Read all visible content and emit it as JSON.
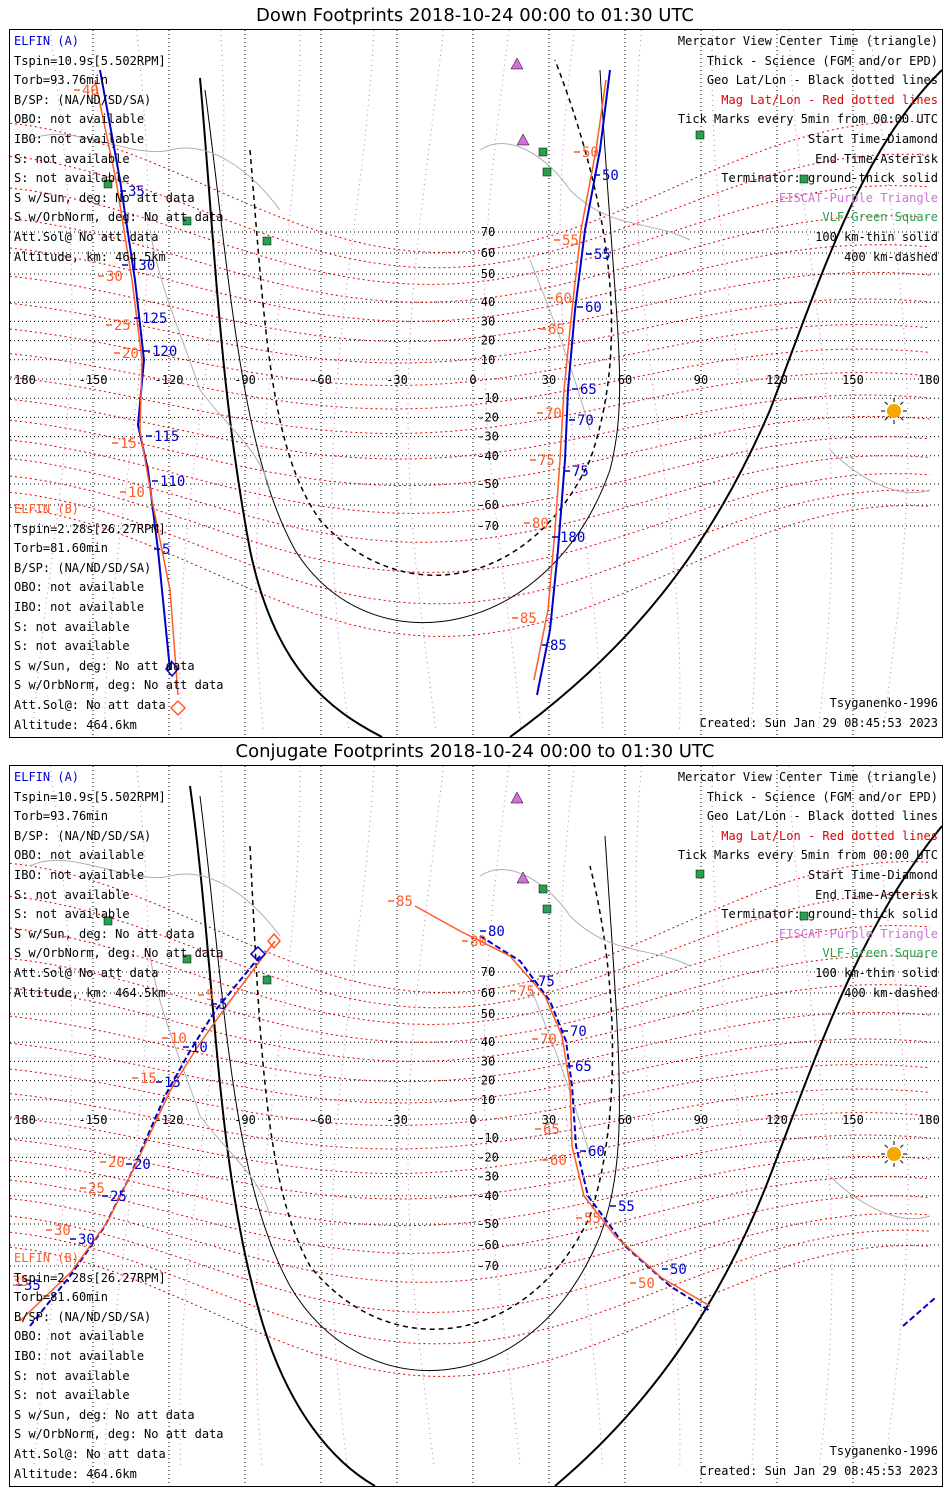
{
  "panels": [
    {
      "title": "Down Footprints 2018-10-24 00:00 to 01:30 UTC",
      "elfin_a": [
        "ELFIN (A)",
        "Tspin=10.9s[5.502RPM]",
        "Torb=93.76min",
        "B/SP: (NA/ND/SD/SA)",
        "OBO: not available",
        "IBO: not available",
        "S: not available",
        "S: not available",
        "S w/Sun, deg: No att data",
        "S w/OrbNorm, deg: No att data",
        "Att.Sol@ No att data",
        "Altitude, km: 464.5km"
      ],
      "elfin_b": [
        "ELFIN (B)",
        "Tspin=2.28s[26.27RPM]",
        "Torb=81.60min",
        "B/SP: (NA/ND/SD/SA)",
        "OBO: not available",
        "IBO: not available",
        "S: not available",
        "S: not available",
        "S w/Sun, deg: No att data",
        "S w/OrbNorm, deg: No att data",
        "Att.Sol@: No att data",
        "Altitude: 464.6km"
      ],
      "footer_model": "Tsyganenko-1996",
      "footer_created": "Created: Sun Jan 29 08:45:53 2023"
    },
    {
      "title": "Conjugate Footprints 2018-10-24 00:00 to 01:30 UTC",
      "elfin_a": [
        "ELFIN (A)",
        "Tspin=10.9s[5.502RPM]",
        "Torb=93.76min",
        "B/SP: (NA/ND/SD/SA)",
        "OBO: not available",
        "IBO: not available",
        "S: not available",
        "S: not available",
        "S w/Sun, deg: No att data",
        "S w/OrbNorm, deg: No att data",
        "Att.Sol@ No att data",
        "Altitude, km: 464.5km"
      ],
      "elfin_b": [
        "ELFIN (B)",
        "Tspin=2.28s[26.27RPM]",
        "Torb=81.60min",
        "B/SP: (NA/ND/SD/SA)",
        "OBO: not available",
        "IBO: not available",
        "S: not available",
        "S: not available",
        "S w/Sun, deg: No att data",
        "S w/OrbNorm, deg: No att data",
        "Att.Sol@: No att data",
        "Altitude: 464.6km"
      ],
      "footer_model": "Tsyganenko-1996",
      "footer_created": "Created: Sun Jan 29 08:45:53 2023"
    }
  ],
  "legend": [
    {
      "text": "Mercator View Center Time (triangle)",
      "color": "#000000"
    },
    {
      "text": "Thick - Science (FGM and/or EPD)",
      "color": "#000000"
    },
    {
      "text": "Geo Lat/Lon - Black dotted lines",
      "color": "#000000"
    },
    {
      "text": "Mag Lat/Lon - Red dotted lines",
      "color": "#e00000"
    },
    {
      "text": "Tick Marks every 5min from 00:00 UTC",
      "color": "#000000"
    },
    {
      "text": "Start Time-Diamond",
      "color": "#000000"
    },
    {
      "text": "End Time-Asterisk",
      "color": "#000000"
    },
    {
      "text": "Terminator: ground-thick solid",
      "color": "#000000"
    },
    {
      "text": "EISCAT-Purple Triangle",
      "color": "#d070d8"
    },
    {
      "text": "VLF-Green Square",
      "color": "#28a050"
    },
    {
      "text": "100 km-thin solid",
      "color": "#000000"
    },
    {
      "text": "400 km-dashed",
      "color": "#000000"
    }
  ],
  "map": {
    "lon_ticks": [
      "180",
      "-150",
      "-120",
      "-90",
      "-60",
      "-30",
      "0",
      "30",
      "60",
      "90",
      "120",
      "150",
      "180"
    ],
    "lat_ticks": [
      "70",
      "60",
      "50",
      "40",
      "30",
      "20",
      "10",
      "0",
      "-10",
      "-20",
      "-30",
      "-40",
      "-50",
      "-60",
      "-70"
    ],
    "colors": {
      "elfin_a": "#0000c8",
      "elfin_b": "#ff5a28",
      "mag_grid": "#e00000",
      "geo_grid": "#000000",
      "eiscat": "#d070d8",
      "vlf": "#28a050",
      "sun": "#f5a800"
    }
  },
  "down_tracks": {
    "a_labels": [
      "35",
      "130",
      "125",
      "120",
      "115",
      "110",
      "5",
      "50",
      "55",
      "60",
      "65",
      "70",
      "75",
      "180",
      "85"
    ],
    "b_labels": [
      "40",
      "30",
      "25",
      "20",
      "15",
      "10",
      "50",
      "55",
      "60",
      "65",
      "70",
      "75",
      "80",
      "85"
    ]
  },
  "conj_tracks": {
    "a_labels": [
      "5",
      "10",
      "15",
      "20",
      "25",
      "30",
      "35",
      "80",
      "75",
      "70",
      "65",
      "60",
      "55",
      "50"
    ],
    "b_labels": [
      "5",
      "10",
      "15",
      "20",
      "25",
      "30",
      "35",
      "85",
      "80",
      "75",
      "70",
      "65",
      "60",
      "55",
      "50"
    ]
  }
}
